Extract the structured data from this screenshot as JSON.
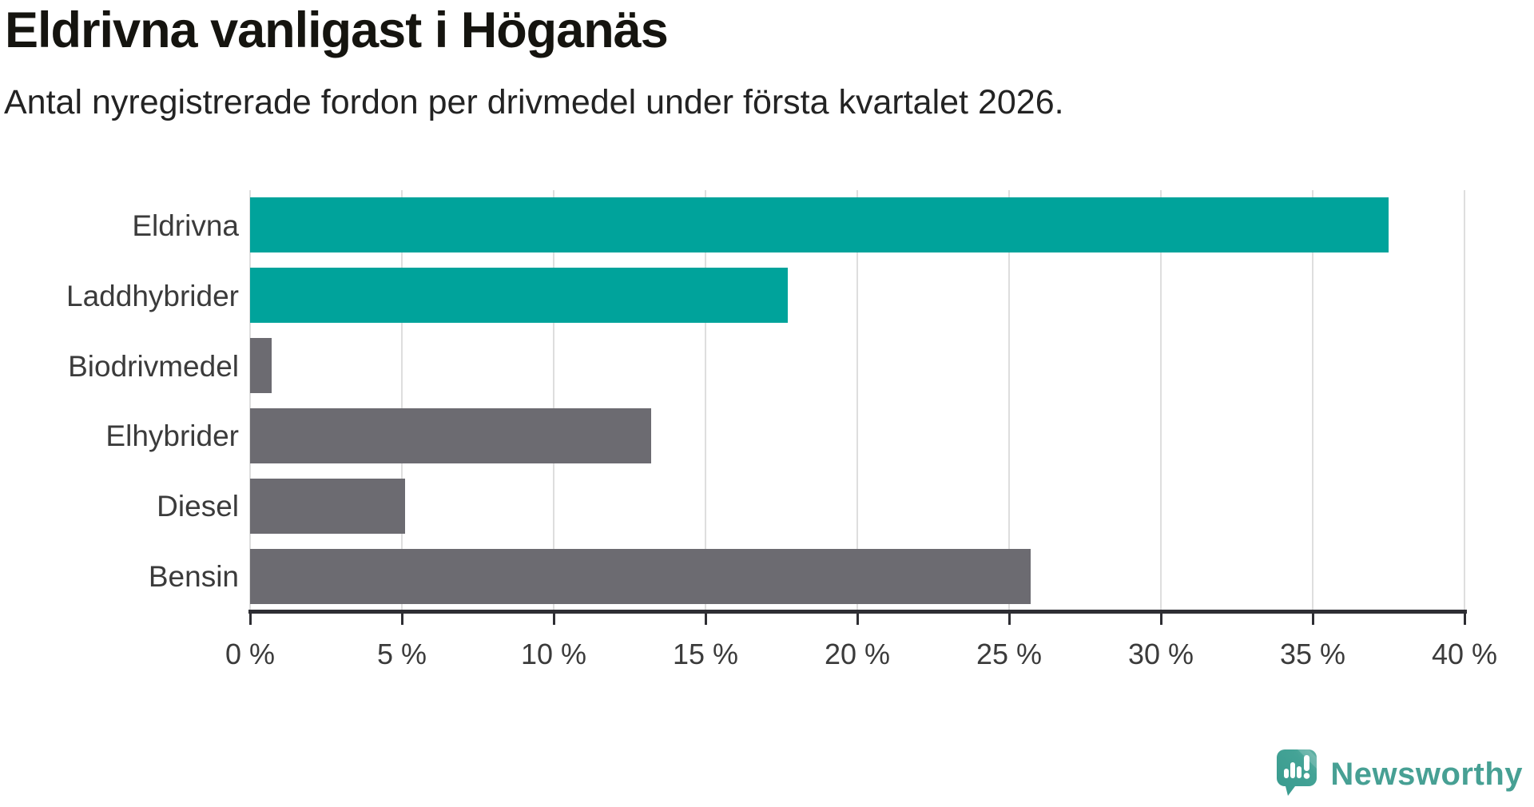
{
  "chart_data": {
    "type": "bar",
    "orientation": "horizontal",
    "title": "Eldrivna vanligast i Höganäs",
    "subtitle": "Antal nyregistrerade fordon per drivmedel under första kvartalet 2026.",
    "categories": [
      "Eldrivna",
      "Laddhybrider",
      "Biodrivmedel",
      "Elhybrider",
      "Diesel",
      "Bensin"
    ],
    "values": [
      37.5,
      17.7,
      0.7,
      13.2,
      5.1,
      25.7
    ],
    "unit": "%",
    "bar_colors": [
      "#00A39B",
      "#00A39B",
      "#6C6B71",
      "#6C6B71",
      "#6C6B71",
      "#6C6B71"
    ],
    "highlight_color": "#00A39B",
    "default_color": "#6C6B71",
    "xlim": [
      0,
      40
    ],
    "x_ticks": [
      0,
      5,
      10,
      15,
      20,
      25,
      30,
      35,
      40
    ],
    "x_tick_labels": [
      "0 %",
      "5 %",
      "10 %",
      "15 %",
      "20 %",
      "25 %",
      "30 %",
      "35 %",
      "40 %"
    ],
    "grid": "vertical-gridlines-on",
    "legend": "none",
    "xlabel": "",
    "ylabel": ""
  },
  "footer": {
    "brand": "Newsworthy",
    "brand_color": "#47a094",
    "logo_icon": "newsworthy-speech-bubble-chart-icon"
  }
}
